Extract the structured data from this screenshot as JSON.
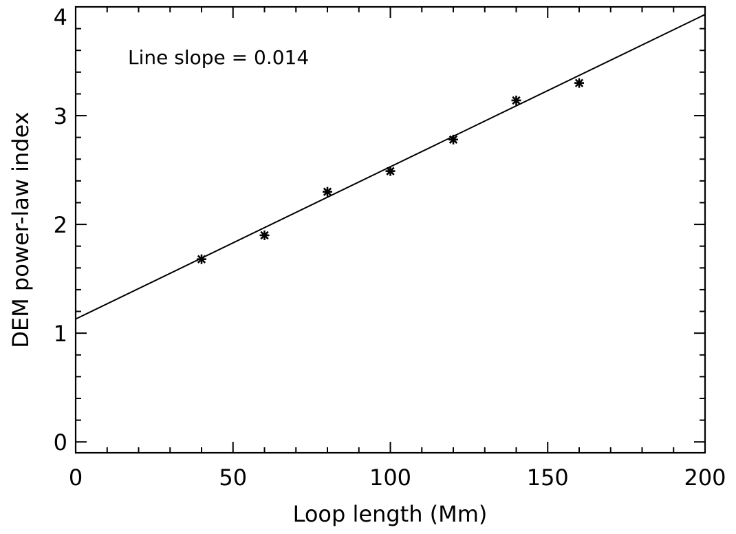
{
  "chart_data": {
    "type": "scatter",
    "xlabel": "Loop length (Mm)",
    "ylabel": "DEM power-law index",
    "xlim": [
      0,
      200
    ],
    "ylim": [
      -0.1,
      4.0
    ],
    "x_major_ticks": [
      0,
      50,
      100,
      150,
      200
    ],
    "x_minor_step": 10,
    "y_major_ticks": [
      0,
      1,
      2,
      3,
      4
    ],
    "y_minor_step": 0.2,
    "x_tick_labels": [
      "0",
      "50",
      "100",
      "150",
      "200"
    ],
    "y_tick_labels": [
      "0",
      "1",
      "2",
      "3",
      "4"
    ],
    "series": [
      {
        "marker": "asterisk",
        "x": [
          40,
          60,
          80,
          100,
          120,
          140,
          160
        ],
        "y": [
          1.68,
          1.9,
          2.3,
          2.49,
          2.78,
          3.14,
          3.3
        ]
      }
    ],
    "fit_line": {
      "intercept": 1.13,
      "slope": 0.014,
      "x_range": [
        0,
        200
      ]
    },
    "annotation": "Line slope = 0.014",
    "grid": false,
    "legend": "none"
  }
}
